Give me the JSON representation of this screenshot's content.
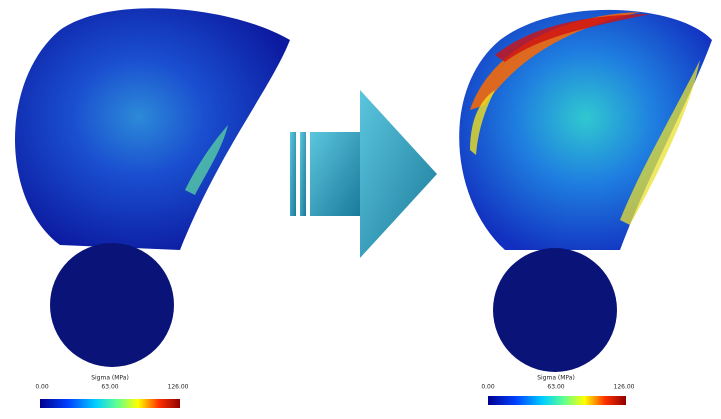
{
  "left": {
    "legend": {
      "title": "Sigma (MPa)",
      "ticks": [
        "0.00",
        "63.00",
        "126.00"
      ]
    }
  },
  "right": {
    "legend": {
      "title": "Sigma (MPa)",
      "ticks": [
        "0.00",
        "63.00",
        "126.00"
      ]
    }
  }
}
